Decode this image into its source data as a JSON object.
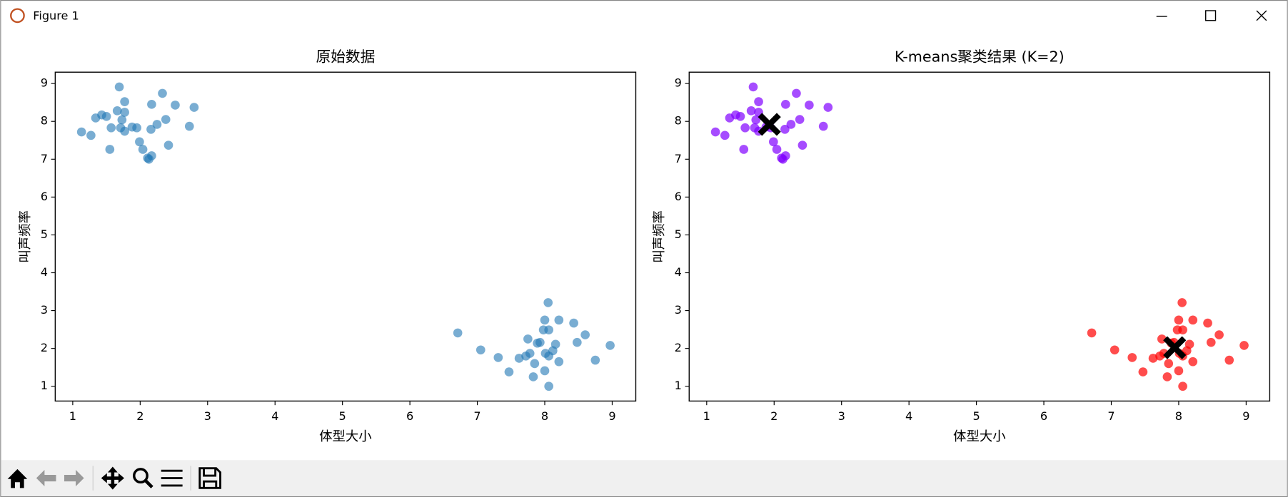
{
  "window_title": "Figure 1",
  "chart_data": [
    {
      "type": "scatter",
      "title": "原始数据",
      "x_label": "体型大小",
      "y_label": "叫声频率",
      "xlim": [
        0.74,
        9.35
      ],
      "ylim": [
        0.61,
        9.3
      ],
      "xticks": [
        1,
        2,
        3,
        4,
        5,
        6,
        7,
        8,
        9
      ],
      "yticks": [
        1,
        2,
        3,
        4,
        5,
        6,
        7,
        8,
        9
      ],
      "series": [
        {
          "color": "#1f77b4",
          "marker": "o",
          "alpha": 0.6,
          "x": [
            1.69,
            2.33,
            1.77,
            2.17,
            2.52,
            2.8,
            1.66,
            1.77,
            1.43,
            1.5,
            1.34,
            1.73,
            2.38,
            2.25,
            1.71,
            1.88,
            1.57,
            1.95,
            2.16,
            2.73,
            1.13,
            1.27,
            1.77,
            1.99,
            2.42,
            2.04,
            1.55,
            2.17,
            2.11,
            2.13,
            8.05,
            6.71,
            8.0,
            8.21,
            8.43,
            8.6,
            7.98,
            8.06,
            7.75,
            7.93,
            7.89,
            8.97,
            8.16,
            8.48,
            7.05,
            8.12,
            7.78,
            8.01,
            8.06,
            7.31,
            7.72,
            7.62,
            8.21,
            8.75,
            7.85,
            7.47,
            8.0,
            7.83,
            8.06
          ],
          "y": [
            8.91,
            8.74,
            8.52,
            8.45,
            8.43,
            8.37,
            8.28,
            8.24,
            8.17,
            8.13,
            8.09,
            8.04,
            8.05,
            7.92,
            7.83,
            7.85,
            7.83,
            7.83,
            7.79,
            7.87,
            7.72,
            7.63,
            7.74,
            7.46,
            7.37,
            7.26,
            7.26,
            7.09,
            7.03,
            7.0,
            3.21,
            2.41,
            2.75,
            2.75,
            2.67,
            2.36,
            2.49,
            2.49,
            2.25,
            2.16,
            2.14,
            2.08,
            2.11,
            2.16,
            1.96,
            1.94,
            1.87,
            1.87,
            1.8,
            1.76,
            1.8,
            1.74,
            1.65,
            1.69,
            1.6,
            1.38,
            1.41,
            1.25,
            1.0
          ]
        }
      ]
    },
    {
      "type": "scatter",
      "title": "K-means聚类结果 (K=2)",
      "x_label": "体型大小",
      "y_label": "叫声频率",
      "xlim": [
        0.74,
        9.35
      ],
      "ylim": [
        0.61,
        9.3
      ],
      "xticks": [
        1,
        2,
        3,
        4,
        5,
        6,
        7,
        8,
        9
      ],
      "yticks": [
        1,
        2,
        3,
        4,
        5,
        6,
        7,
        8,
        9
      ],
      "series": [
        {
          "color": "#8000ff",
          "marker": "o",
          "alpha": 0.7,
          "x": [
            1.69,
            2.33,
            1.77,
            2.17,
            2.52,
            2.8,
            1.66,
            1.77,
            1.43,
            1.5,
            1.34,
            1.73,
            2.38,
            2.25,
            1.71,
            1.88,
            1.57,
            1.95,
            2.16,
            2.73,
            1.13,
            1.27,
            1.77,
            1.99,
            2.42,
            2.04,
            1.55,
            2.17,
            2.11,
            2.13
          ],
          "y": [
            8.91,
            8.74,
            8.52,
            8.45,
            8.43,
            8.37,
            8.28,
            8.24,
            8.17,
            8.13,
            8.09,
            8.04,
            8.05,
            7.92,
            7.83,
            7.85,
            7.83,
            7.83,
            7.79,
            7.87,
            7.72,
            7.63,
            7.74,
            7.46,
            7.37,
            7.26,
            7.26,
            7.09,
            7.03,
            7.0
          ]
        },
        {
          "color": "#ff0000",
          "marker": "o",
          "alpha": 0.7,
          "x": [
            8.05,
            6.71,
            8.0,
            8.21,
            8.43,
            8.6,
            7.98,
            8.06,
            7.75,
            7.93,
            7.89,
            8.97,
            8.16,
            8.48,
            7.05,
            8.12,
            7.78,
            8.01,
            8.06,
            7.31,
            7.72,
            7.62,
            8.21,
            8.75,
            7.85,
            7.47,
            8.0,
            7.83,
            8.06
          ],
          "y": [
            3.21,
            2.41,
            2.75,
            2.75,
            2.67,
            2.36,
            2.49,
            2.49,
            2.25,
            2.16,
            2.14,
            2.08,
            2.11,
            2.16,
            1.96,
            1.94,
            1.87,
            1.87,
            1.8,
            1.76,
            1.8,
            1.74,
            1.65,
            1.69,
            1.6,
            1.38,
            1.41,
            1.25,
            1.0
          ]
        },
        {
          "color": "#000000",
          "marker": "X",
          "alpha": 1,
          "x": [
            1.93,
            7.94
          ],
          "y": [
            7.92,
            2.02
          ]
        }
      ]
    }
  ]
}
